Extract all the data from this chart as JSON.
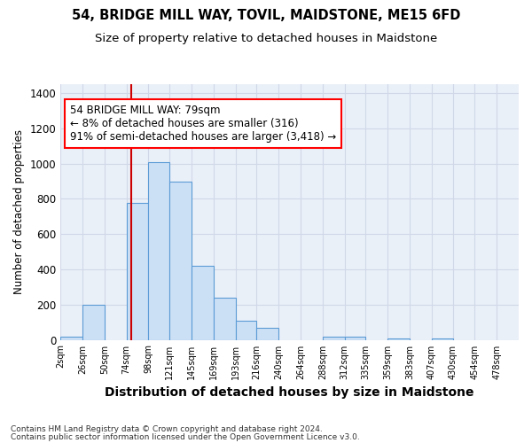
{
  "title": "54, BRIDGE MILL WAY, TOVIL, MAIDSTONE, ME15 6FD",
  "subtitle": "Size of property relative to detached houses in Maidstone",
  "xlabel": "Distribution of detached houses by size in Maidstone",
  "ylabel": "Number of detached properties",
  "footnote1": "Contains HM Land Registry data © Crown copyright and database right 2024.",
  "footnote2": "Contains public sector information licensed under the Open Government Licence v3.0.",
  "annotation_title": "54 BRIDGE MILL WAY: 79sqm",
  "annotation_line1": "← 8% of detached houses are smaller (316)",
  "annotation_line2": "91% of semi-detached houses are larger (3,418) →",
  "bar_left_edges": [
    2,
    26,
    50,
    74,
    98,
    121,
    145,
    169,
    193,
    216,
    240,
    264,
    288,
    312,
    335,
    359,
    383,
    407,
    430,
    454
  ],
  "bar_widths": [
    24,
    24,
    24,
    24,
    23,
    24,
    24,
    24,
    23,
    24,
    24,
    24,
    24,
    23,
    24,
    24,
    24,
    23,
    24,
    24
  ],
  "bar_heights": [
    20,
    200,
    0,
    775,
    1010,
    895,
    420,
    240,
    110,
    70,
    0,
    0,
    20,
    20,
    0,
    10,
    0,
    10,
    0,
    0
  ],
  "bar_color": "#cce0f5",
  "bar_edge_color": "#5b9bd5",
  "vline_x": 79,
  "vline_color": "#cc0000",
  "ylim": [
    0,
    1450
  ],
  "yticks": [
    0,
    200,
    400,
    600,
    800,
    1000,
    1200,
    1400
  ],
  "xtick_labels": [
    "2sqm",
    "26sqm",
    "50sqm",
    "74sqm",
    "98sqm",
    "121sqm",
    "145sqm",
    "169sqm",
    "193sqm",
    "216sqm",
    "240sqm",
    "264sqm",
    "288sqm",
    "312sqm",
    "335sqm",
    "359sqm",
    "383sqm",
    "407sqm",
    "430sqm",
    "454sqm",
    "478sqm"
  ],
  "xtick_positions": [
    2,
    26,
    50,
    74,
    98,
    121,
    145,
    169,
    193,
    216,
    240,
    264,
    288,
    312,
    335,
    359,
    383,
    407,
    430,
    454,
    478
  ],
  "grid_color": "#d0d8e8",
  "bg_color": "#eaf0f8",
  "title_fontsize": 10.5,
  "subtitle_fontsize": 9.5,
  "xlabel_fontsize": 10,
  "ylabel_fontsize": 8.5,
  "xmax": 502
}
